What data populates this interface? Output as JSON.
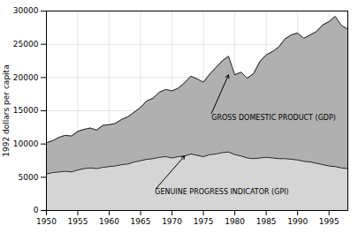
{
  "chart_data": {
    "type": "area",
    "x": [
      1950,
      1951,
      1952,
      1953,
      1954,
      1955,
      1956,
      1957,
      1958,
      1959,
      1960,
      1961,
      1962,
      1963,
      1964,
      1965,
      1966,
      1967,
      1968,
      1969,
      1970,
      1971,
      1972,
      1973,
      1974,
      1975,
      1976,
      1977,
      1978,
      1979,
      1980,
      1981,
      1982,
      1983,
      1984,
      1985,
      1986,
      1987,
      1988,
      1989,
      1990,
      1991,
      1992,
      1993,
      1994,
      1995,
      1996,
      1997,
      1998
    ],
    "series": [
      {
        "name": "GROSS DOMESTIC PRODUCT (GDP)",
        "color": "#b0b0b0",
        "values": [
          10200,
          10500,
          11000,
          11300,
          11200,
          11900,
          12200,
          12400,
          12100,
          12800,
          12900,
          13100,
          13700,
          14100,
          14800,
          15500,
          16500,
          16900,
          17800,
          18200,
          18000,
          18400,
          19200,
          20200,
          19800,
          19300,
          20500,
          21500,
          22500,
          23200,
          20400,
          20800,
          19900,
          20600,
          22400,
          23400,
          23900,
          24600,
          25800,
          26400,
          26700,
          25900,
          26400,
          26900,
          27900,
          28400,
          29200,
          27800,
          27300
        ]
      },
      {
        "name": "GENUINE PROGRESS INDICATOR (GPI)",
        "color": "#d5d5d5",
        "values": [
          5500,
          5700,
          5800,
          5900,
          5800,
          6100,
          6300,
          6400,
          6300,
          6500,
          6600,
          6700,
          6900,
          7000,
          7300,
          7500,
          7700,
          7800,
          8000,
          8100,
          7900,
          8100,
          8200,
          8500,
          8300,
          8100,
          8400,
          8500,
          8700,
          8800,
          8400,
          8200,
          7900,
          7800,
          7900,
          8000,
          7900,
          7800,
          7800,
          7700,
          7600,
          7400,
          7300,
          7100,
          6900,
          6700,
          6600,
          6400,
          6300
        ]
      }
    ],
    "ylabel": "1992 dollars per capita",
    "xlim": [
      1950,
      1998
    ],
    "ylim": [
      0,
      30000
    ],
    "xticks": [
      1950,
      1955,
      1960,
      1965,
      1970,
      1975,
      1980,
      1985,
      1990,
      1995
    ],
    "yticks": [
      0,
      5000,
      10000,
      15000,
      20000,
      25000,
      30000
    ],
    "grid": true,
    "annotations": [
      {
        "text": "GROSS DOMESTIC PRODUCT (GDP)",
        "x": 1979,
        "y": 20400,
        "text_x": 1976,
        "text_y": 14000
      },
      {
        "text": "GENUINE PROGRESS INDICATOR (GPI)",
        "x": 1972,
        "y": 8200,
        "text_x": 1967,
        "text_y": 2800
      }
    ]
  }
}
